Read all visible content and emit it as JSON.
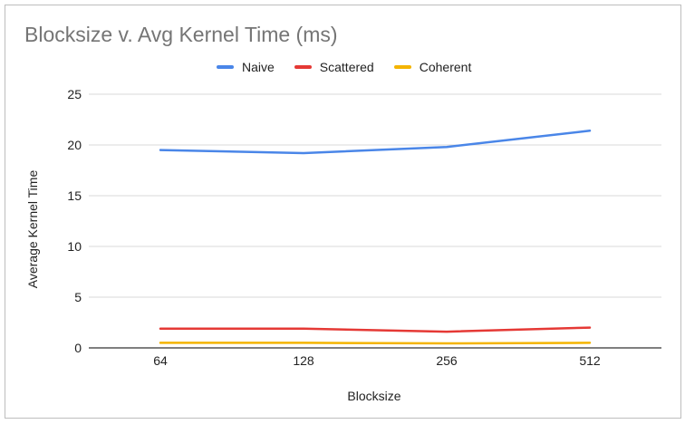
{
  "chart_data": {
    "type": "line",
    "title": "Blocksize v. Avg Kernel Time (ms)",
    "xlabel": "Blocksize",
    "ylabel": "Average Kernel Time",
    "categories": [
      "64",
      "128",
      "256",
      "512"
    ],
    "yticks": [
      "0",
      "5",
      "10",
      "15",
      "20",
      "25"
    ],
    "ylim": [
      0,
      25
    ],
    "grid": true,
    "legend_position": "top",
    "series": [
      {
        "name": "Naive",
        "color": "#4a86e8",
        "values": [
          19.5,
          19.2,
          19.8,
          21.4
        ]
      },
      {
        "name": "Scattered",
        "color": "#e53935",
        "values": [
          1.9,
          1.9,
          1.6,
          2.0
        ]
      },
      {
        "name": "Coherent",
        "color": "#f4b400",
        "values": [
          0.5,
          0.5,
          0.45,
          0.5
        ]
      }
    ]
  }
}
